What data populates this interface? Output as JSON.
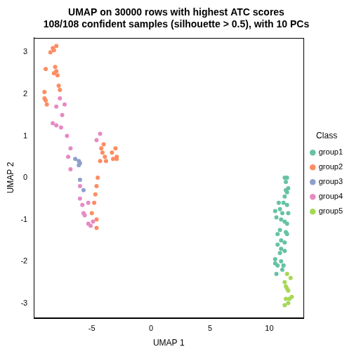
{
  "chart_data": {
    "type": "scatter",
    "title": [
      "UMAP on 30000 rows with highest ATC scores",
      "108/108 confident samples (silhouette > 0.5), with 10 PCs"
    ],
    "x_label": "UMAP 1",
    "y_label": "UMAP 2",
    "xlim": [
      -9.9,
      12.9
    ],
    "xticks": [
      -5,
      0,
      5,
      10
    ],
    "ylim": [
      -3.35,
      3.35
    ],
    "yticks": [
      -3,
      -2,
      -1,
      0,
      1,
      2,
      3
    ],
    "grid": false,
    "legend": "right",
    "legend_title": "Class",
    "marker": "circle",
    "series": [
      {
        "name": "group1",
        "color": "#66C2A5",
        "x": [
          11.3,
          11.5,
          11.4,
          11.6,
          11.4,
          11.5,
          11.3,
          10.8,
          11.2,
          11.5,
          10.9,
          10.5,
          11.1,
          11.6,
          10.6,
          11.0,
          11.3,
          11.5,
          10.9,
          11.4,
          10.7,
          11.5,
          11.0,
          10.7,
          11.3,
          11.0,
          10.9,
          11.3,
          10.5,
          11.0,
          10.5,
          10.7,
          11.1,
          10.6,
          11.2
        ],
        "y": [
          0.0,
          0.0,
          -0.1,
          -0.25,
          -0.3,
          -0.35,
          -0.45,
          -0.6,
          -0.6,
          -0.65,
          -0.75,
          -0.8,
          -0.85,
          -0.85,
          -0.95,
          -1.0,
          -1.05,
          -1.1,
          -1.25,
          -1.3,
          -1.35,
          -1.35,
          -1.5,
          -1.6,
          -1.55,
          -1.7,
          -1.8,
          -1.75,
          -1.95,
          -2.0,
          -2.05,
          -2.1,
          -2.2,
          -2.3,
          -2.1
        ]
      },
      {
        "name": "group2",
        "color": "#FC8D62",
        "x": [
          -8.3,
          -8.0,
          -8.5,
          -8.2,
          -8.9,
          -8.1,
          -8.0,
          -8.2,
          -7.9,
          -7.8,
          -7.7,
          -9.0,
          -9.0,
          -8.9,
          -8.8,
          -4.2,
          -4.0,
          -4.1,
          -3.9,
          -3.8,
          -4.3,
          -3.3,
          -3.0,
          -2.9,
          -3.2,
          -2.9,
          -4.5,
          -4.6,
          -4.7,
          -4.8,
          -5.0,
          -4.6,
          -4.6
        ],
        "y": [
          3.1,
          3.15,
          3.0,
          3.05,
          2.6,
          2.65,
          2.55,
          2.5,
          2.45,
          2.2,
          2.1,
          2.05,
          1.9,
          1.85,
          1.75,
          0.7,
          0.8,
          0.6,
          0.5,
          0.4,
          0.4,
          0.6,
          0.7,
          0.5,
          0.45,
          0.45,
          0.0,
          -0.2,
          -0.4,
          -0.6,
          -0.85,
          -1.0,
          -1.2
        ]
      },
      {
        "name": "group3",
        "color": "#8DA0CB",
        "x": [
          -6.4,
          -6.1,
          -6.0,
          -6.1,
          -6.0,
          -5.7
        ],
        "y": [
          0.45,
          0.4,
          0.35,
          0.3,
          -0.05,
          -0.3
        ]
      },
      {
        "name": "group4",
        "color": "#E78AC3",
        "x": [
          -7.7,
          -7.3,
          -8.0,
          -7.5,
          -8.3,
          -8.0,
          -7.6,
          -7.1,
          -6.8,
          -7.0,
          -6.8,
          -4.3,
          -4.6,
          -6.0,
          -6.0,
          -5.8,
          -5.3,
          -5.7,
          -5.6,
          -5.3,
          -5.1,
          -4.9
        ],
        "y": [
          1.9,
          1.75,
          1.7,
          1.5,
          1.3,
          1.25,
          1.2,
          1.0,
          0.7,
          0.5,
          0.2,
          1.05,
          0.9,
          -0.2,
          -0.5,
          -0.65,
          -0.6,
          -0.85,
          -0.9,
          -1.1,
          -1.15,
          -1.05
        ]
      },
      {
        "name": "group5",
        "color": "#A6D854",
        "x": [
          11.2,
          11.5,
          11.8,
          11.3,
          11.4,
          11.5,
          11.6,
          11.9,
          11.4,
          11.6,
          11.3,
          11.7
        ],
        "y": [
          -2.1,
          -2.3,
          -2.4,
          -2.5,
          -2.6,
          -2.65,
          -2.7,
          -2.85,
          -2.9,
          -3.0,
          -3.05,
          -2.9
        ]
      }
    ]
  }
}
